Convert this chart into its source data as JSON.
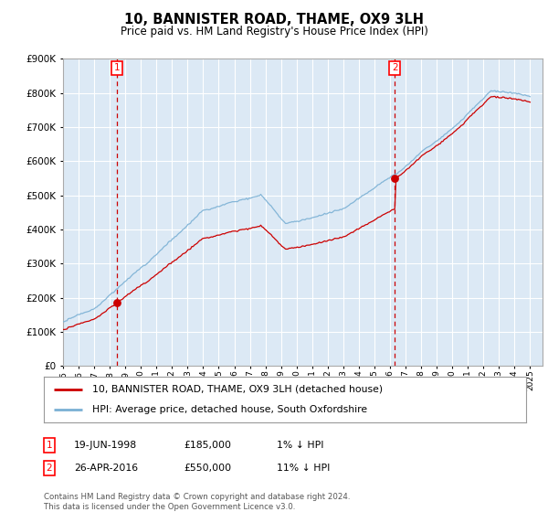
{
  "title": "10, BANNISTER ROAD, THAME, OX9 3LH",
  "subtitle": "Price paid vs. HM Land Registry's House Price Index (HPI)",
  "legend_line1": "10, BANNISTER ROAD, THAME, OX9 3LH (detached house)",
  "legend_line2": "HPI: Average price, detached house, South Oxfordshire",
  "sale1_date": "19-JUN-1998",
  "sale1_price": 185000,
  "sale1_label": "1% ↓ HPI",
  "sale1_year": 1998.46,
  "sale2_date": "26-APR-2016",
  "sale2_price": 550000,
  "sale2_label": "11% ↓ HPI",
  "sale2_year": 2016.32,
  "footer": "Contains HM Land Registry data © Crown copyright and database right 2024.\nThis data is licensed under the Open Government Licence v3.0.",
  "bg_color": "#dce9f5",
  "line_color_red": "#cc0000",
  "line_color_blue": "#7ab0d4",
  "vline_color": "#cc0000",
  "grid_color": "#ffffff",
  "ylim_max": 900000,
  "start_year": 1995,
  "end_year": 2025
}
